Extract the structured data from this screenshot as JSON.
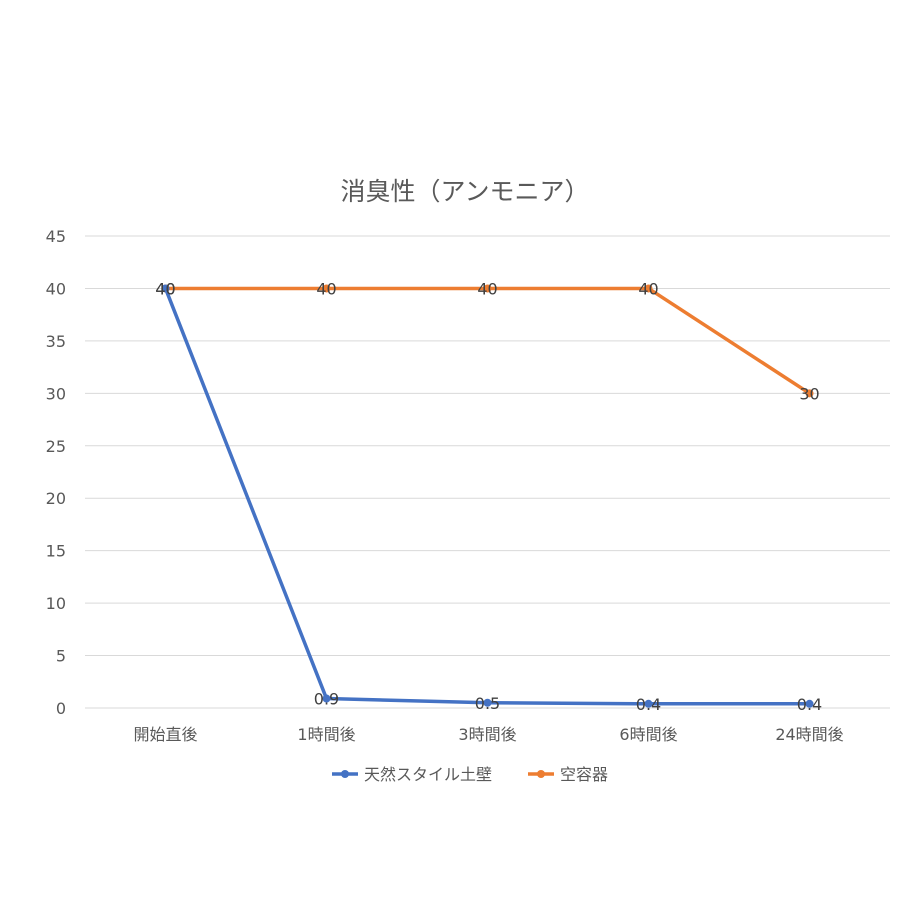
{
  "chart_data": {
    "type": "line",
    "title": "消臭性（アンモニア）",
    "xlabel": "",
    "ylabel": "",
    "categories": [
      "開始直後",
      "1時間後",
      "3時間後",
      "6時間後",
      "24時間後"
    ],
    "y_ticks": [
      "0",
      "5",
      "10",
      "15",
      "20",
      "25",
      "30",
      "35",
      "40",
      "45"
    ],
    "ylim": [
      0,
      45
    ],
    "grid": "horizontal",
    "legend_position": "bottom",
    "series": [
      {
        "name": "天然スタイル土壁",
        "color": "#4472C4",
        "values": [
          40,
          0.9,
          0.5,
          0.4,
          0.4
        ],
        "labels": [
          "40",
          "0.9",
          "0.5",
          "0.4",
          "0.4"
        ]
      },
      {
        "name": "空容器",
        "color": "#ED7D31",
        "values": [
          40,
          40,
          40,
          40,
          30
        ],
        "labels": [
          "40",
          "40",
          "40",
          "40",
          "30"
        ]
      }
    ]
  }
}
